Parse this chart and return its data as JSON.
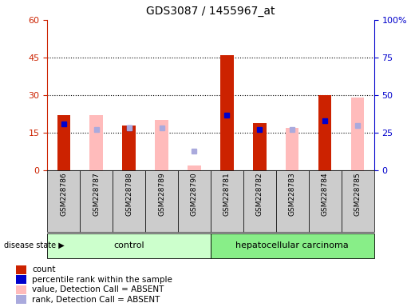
{
  "title": "GDS3087 / 1455967_at",
  "samples": [
    "GSM228786",
    "GSM228787",
    "GSM228788",
    "GSM228789",
    "GSM228790",
    "GSM228781",
    "GSM228782",
    "GSM228783",
    "GSM228784",
    "GSM228785"
  ],
  "groups": [
    "control",
    "control",
    "control",
    "control",
    "control",
    "hepatocellular carcinoma",
    "hepatocellular carcinoma",
    "hepatocellular carcinoma",
    "hepatocellular carcinoma",
    "hepatocellular carcinoma"
  ],
  "count_values": [
    22,
    null,
    18,
    null,
    null,
    46,
    19,
    null,
    30,
    null
  ],
  "count_absent_values": [
    null,
    22,
    null,
    20,
    2,
    null,
    null,
    17,
    null,
    29
  ],
  "percentile_rank_values": [
    31,
    null,
    28,
    null,
    null,
    37,
    27,
    null,
    33,
    null
  ],
  "percentile_rank_absent_values": [
    null,
    27,
    28,
    28,
    13,
    null,
    null,
    27,
    null,
    30
  ],
  "ylim_left": [
    0,
    60
  ],
  "ylim_right": [
    0,
    100
  ],
  "yticks_left": [
    0,
    15,
    30,
    45,
    60
  ],
  "yticks_right": [
    0,
    25,
    50,
    75,
    100
  ],
  "yticklabels_left": [
    "0",
    "15",
    "30",
    "45",
    "60"
  ],
  "yticklabels_right": [
    "0",
    "25",
    "50",
    "75",
    "100%"
  ],
  "count_color": "#cc2200",
  "count_absent_color": "#ffbbbb",
  "rank_color": "#0000cc",
  "rank_absent_color": "#aaaadd",
  "control_bg": "#ccffcc",
  "carcinoma_bg": "#88ee88",
  "sample_bg": "#cccccc",
  "legend_items": [
    {
      "color": "#cc2200",
      "label": "count",
      "marker": "square"
    },
    {
      "color": "#0000cc",
      "label": "percentile rank within the sample",
      "marker": "square"
    },
    {
      "color": "#ffbbbb",
      "label": "value, Detection Call = ABSENT",
      "marker": "square"
    },
    {
      "color": "#aaaadd",
      "label": "rank, Detection Call = ABSENT",
      "marker": "square"
    }
  ],
  "bar_width": 0.4
}
